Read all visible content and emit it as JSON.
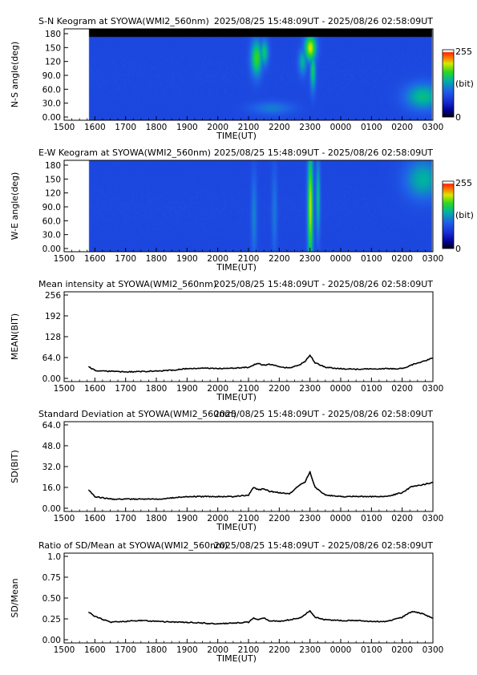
{
  "header_range": "2025/08/25 15:48:09UT - 2025/08/26 02:58:09UT",
  "time_axis": {
    "label": "TIME(UT)",
    "ticks": [
      "1500",
      "1600",
      "1700",
      "1800",
      "1900",
      "2000",
      "2100",
      "2200",
      "2300",
      "0000",
      "0100",
      "0200",
      "0300"
    ]
  },
  "colorbar": {
    "max_label": "255",
    "unit_label": "(bit)",
    "min_label": "0"
  },
  "colormap": {
    "stops": [
      {
        "v": 0.0,
        "color": "#000000"
      },
      {
        "v": 0.1,
        "color": "#00008f"
      },
      {
        "v": 0.25,
        "color": "#1a2fd8"
      },
      {
        "v": 0.4,
        "color": "#1f63e8"
      },
      {
        "v": 0.55,
        "color": "#00b4a0"
      },
      {
        "v": 0.68,
        "color": "#2fd81f"
      },
      {
        "v": 0.8,
        "color": "#d8e800"
      },
      {
        "v": 0.9,
        "color": "#ff6a00"
      },
      {
        "v": 1.0,
        "color": "#ff0000"
      }
    ],
    "top_white": "#ffffff"
  },
  "chart_data": [
    {
      "type": "heatmap",
      "title": "S-N Keogram at SYOWA(WMI2_560nm)",
      "xlabel": "TIME(UT)",
      "ylabel": "N-S angle(deg)",
      "yticks": [
        "180",
        "150",
        "120",
        "90.0",
        "60.0",
        "30.0",
        "0.00"
      ],
      "ylim": [
        0,
        180
      ],
      "data_start": "15:48",
      "data_end": "02:58",
      "background_level": 0.32,
      "features": [
        {
          "time": "21:15",
          "angle": 128,
          "width_min": 8,
          "height_deg": 55,
          "level": 0.68
        },
        {
          "time": "21:30",
          "angle": 140,
          "width_min": 6,
          "height_deg": 40,
          "level": 0.6
        },
        {
          "time": "21:45",
          "angle": 20,
          "width_min": 30,
          "height_deg": 20,
          "level": 0.45
        },
        {
          "time": "23:00",
          "angle": 150,
          "width_min": 8,
          "height_deg": 40,
          "level": 0.8
        },
        {
          "time": "23:05",
          "angle": 100,
          "width_min": 4,
          "height_deg": 60,
          "level": 0.62
        },
        {
          "time": "22:45",
          "angle": 120,
          "width_min": 6,
          "height_deg": 40,
          "level": 0.55
        },
        {
          "time": "02:40",
          "angle": 45,
          "width_min": 25,
          "height_deg": 40,
          "level": 0.58
        }
      ]
    },
    {
      "type": "heatmap",
      "title": "E-W Keogram at SYOWA(WMI2_560nm)",
      "xlabel": "TIME(UT)",
      "ylabel": "W-E angle(deg)",
      "yticks": [
        "180",
        "150",
        "120",
        "90.0",
        "60.0",
        "30.0",
        "0.00"
      ],
      "ylim": [
        0,
        180
      ],
      "data_start": "15:48",
      "data_end": "02:58",
      "background_level": 0.32,
      "features": [
        {
          "time": "23:00",
          "angle": 90,
          "width_min": 4,
          "height_deg": 180,
          "level": 0.78
        },
        {
          "time": "23:15",
          "angle": 110,
          "width_min": 3,
          "height_deg": 120,
          "level": 0.58
        },
        {
          "time": "21:10",
          "angle": 70,
          "width_min": 4,
          "height_deg": 140,
          "level": 0.46
        },
        {
          "time": "21:50",
          "angle": 80,
          "width_min": 4,
          "height_deg": 140,
          "level": 0.44
        },
        {
          "time": "02:40",
          "angle": 150,
          "width_min": 25,
          "height_deg": 60,
          "level": 0.55
        }
      ]
    },
    {
      "type": "line",
      "title": "Mean intensity at SYOWA(WMI2_560nm)",
      "xlabel": "TIME(UT)",
      "ylabel": "MEAN(BIT)",
      "yticks": [
        "256",
        "192",
        "128",
        "64.0",
        "0.00"
      ],
      "ylim": [
        0,
        256
      ],
      "x": [
        "15:48",
        "16:00",
        "16:30",
        "17:00",
        "17:30",
        "18:00",
        "18:30",
        "19:00",
        "19:30",
        "20:00",
        "20:30",
        "21:00",
        "21:10",
        "21:20",
        "21:30",
        "21:40",
        "22:00",
        "22:20",
        "22:40",
        "22:50",
        "23:00",
        "23:10",
        "23:30",
        "00:00",
        "00:30",
        "01:00",
        "01:30",
        "02:00",
        "02:20",
        "02:40",
        "03:00"
      ],
      "series": [
        {
          "values": [
            36,
            24,
            22,
            20,
            21,
            22,
            25,
            30,
            32,
            30,
            31,
            34,
            42,
            45,
            40,
            44,
            36,
            32,
            42,
            52,
            72,
            48,
            34,
            30,
            28,
            29,
            30,
            30,
            42,
            52,
            62
          ]
        }
      ]
    },
    {
      "type": "line",
      "title": "Standard Deviation at SYOWA(WMI2_560nm)",
      "xlabel": "TIME(UT)",
      "ylabel": "SD(BIT)",
      "yticks": [
        "64.0",
        "48.0",
        "32.0",
        "16.0",
        "0.00"
      ],
      "ylim": [
        0,
        64
      ],
      "x": [
        "15:48",
        "16:00",
        "16:30",
        "17:00",
        "17:30",
        "18:00",
        "18:30",
        "19:00",
        "19:30",
        "20:00",
        "20:30",
        "21:00",
        "21:10",
        "21:20",
        "21:30",
        "21:40",
        "22:00",
        "22:20",
        "22:40",
        "22:50",
        "23:00",
        "23:10",
        "23:30",
        "00:00",
        "00:30",
        "01:00",
        "01:30",
        "02:00",
        "02:20",
        "02:40",
        "03:00"
      ],
      "series": [
        {
          "values": [
            14,
            9,
            7,
            7,
            7,
            7,
            8,
            9,
            9,
            9,
            9,
            10,
            16,
            14,
            15,
            13,
            12,
            11,
            18,
            20,
            28,
            16,
            10,
            9,
            9,
            9,
            9,
            12,
            17,
            18,
            20
          ]
        }
      ]
    },
    {
      "type": "line",
      "title": "Ratio of SD/Mean at SYOWA(WMI2_560nm)",
      "xlabel": "TIME(UT)",
      "ylabel": "SD/Mean",
      "yticks": [
        "1.0",
        "0.75",
        "0.50",
        "0.25",
        "0.00"
      ],
      "ylim": [
        0,
        1
      ],
      "x": [
        "15:48",
        "16:00",
        "16:30",
        "17:00",
        "17:30",
        "18:00",
        "18:30",
        "19:00",
        "19:30",
        "20:00",
        "20:30",
        "21:00",
        "21:10",
        "21:20",
        "21:30",
        "21:40",
        "22:00",
        "22:20",
        "22:40",
        "22:50",
        "23:00",
        "23:10",
        "23:30",
        "00:00",
        "00:30",
        "01:00",
        "01:30",
        "02:00",
        "02:20",
        "02:40",
        "03:00"
      ],
      "series": [
        {
          "values": [
            0.33,
            0.28,
            0.21,
            0.22,
            0.23,
            0.22,
            0.21,
            0.21,
            0.2,
            0.19,
            0.2,
            0.21,
            0.26,
            0.24,
            0.26,
            0.23,
            0.22,
            0.24,
            0.26,
            0.3,
            0.35,
            0.27,
            0.24,
            0.23,
            0.23,
            0.22,
            0.22,
            0.27,
            0.34,
            0.31,
            0.26
          ]
        }
      ]
    }
  ]
}
